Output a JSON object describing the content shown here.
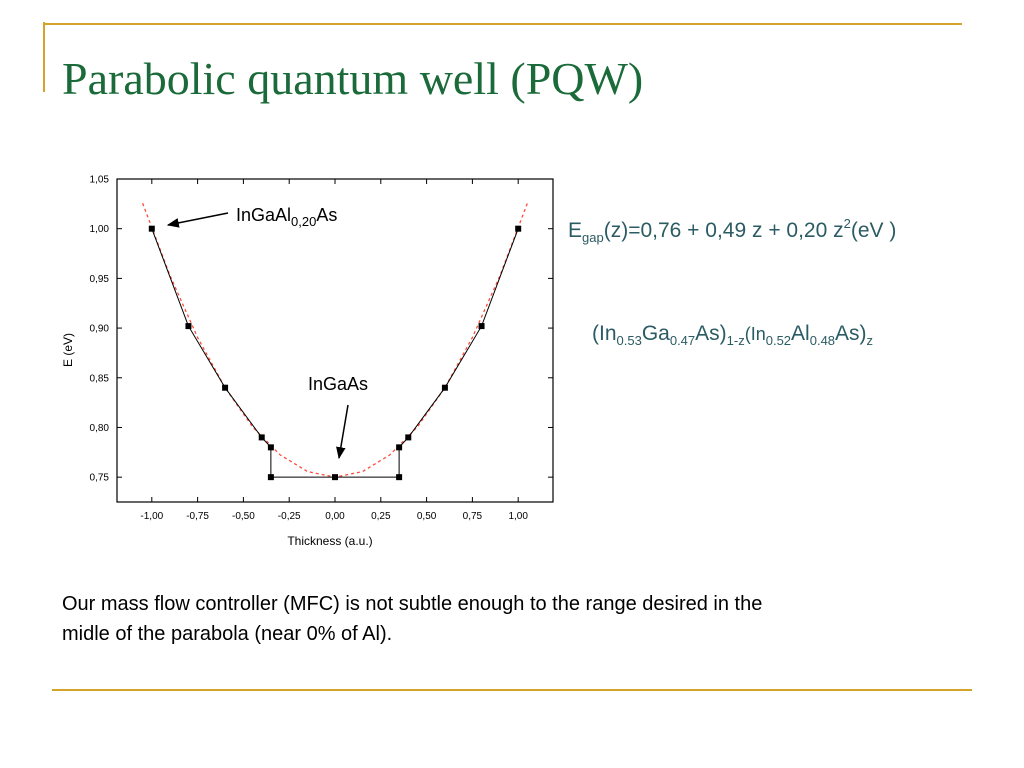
{
  "slide": {
    "title": "Parabolic quantum well (PQW)",
    "equations": [
      [
        "E",
        "gap",
        "(z)=0,76 + 0,49 z + 0,20 z",
        "2",
        "(eV )"
      ],
      [
        "(In",
        "0.53",
        "Ga",
        "0.47",
        "As)",
        "1-z",
        "(In",
        "0.52",
        "Al",
        "0.48",
        "As)",
        "z"
      ]
    ],
    "body": [
      "Our mass flow controller (MFC) is not subtle enough to the range desired in the",
      "midle of the parabola (near 0% of Al)."
    ]
  },
  "chart_data": {
    "type": "line",
    "xlabel": "Thickness (a.u.)",
    "ylabel": "E (eV)",
    "annotations": [
      [
        "InGaAl",
        "0,20",
        "As"
      ],
      [
        "InGaAs"
      ]
    ],
    "series": [
      {
        "x": [
          -1.0,
          -0.8,
          -0.6,
          -0.4,
          -0.35,
          -0.35,
          0,
          0.35,
          0.35,
          0.4,
          0.6,
          0.8,
          1.0
        ],
        "values": [
          1.0,
          0.902,
          0.84,
          0.79,
          0.78,
          0.75,
          0.75,
          0.75,
          0.78,
          0.79,
          0.84,
          0.902,
          1.0
        ],
        "color": "#000000",
        "marker": "square"
      },
      {
        "x": [
          -1.05,
          -0.9,
          -0.75,
          -0.6,
          -0.45,
          -0.3,
          -0.15,
          0,
          0.15,
          0.3,
          0.45,
          0.6,
          0.75,
          0.9,
          1.05
        ],
        "values": [
          1.0256,
          0.9525,
          0.8906,
          0.84,
          0.8006,
          0.7725,
          0.7556,
          0.75,
          0.7556,
          0.7725,
          0.8006,
          0.84,
          0.8906,
          0.9525,
          1.0256
        ],
        "color": "#ff4a3a",
        "dashed": true
      }
    ],
    "xlim": [
      -1.19,
      1.19
    ],
    "ylim": [
      0.725,
      1.05
    ],
    "xticks": [
      {
        "value": -1.0,
        "label": "-1,00"
      },
      {
        "value": -0.75,
        "label": "-0,75"
      },
      {
        "value": -0.5,
        "label": "-0,50"
      },
      {
        "value": -0.25,
        "label": "-0,25"
      },
      {
        "value": 0,
        "label": "0,00"
      },
      {
        "value": 0.25,
        "label": "0,25"
      },
      {
        "value": 0.5,
        "label": "0,50"
      },
      {
        "value": 0.75,
        "label": "0,75"
      },
      {
        "value": 1.0,
        "label": "1,00"
      }
    ],
    "yticks": [
      {
        "value": 0.75,
        "label": "0,75"
      },
      {
        "value": 0.8,
        "label": "0,80"
      },
      {
        "value": 0.85,
        "label": "0,85"
      },
      {
        "value": 0.9,
        "label": "0,90"
      },
      {
        "value": 0.95,
        "label": "0,95"
      },
      {
        "value": 1.0,
        "label": "1,00"
      },
      {
        "value": 1.05,
        "label": "1,05"
      }
    ]
  }
}
